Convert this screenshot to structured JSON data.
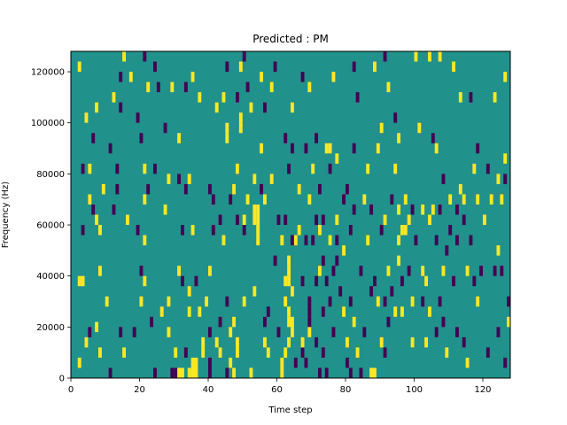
{
  "chart_data": {
    "type": "heatmap",
    "title": "Predicted : PM",
    "xlabel": "Time step",
    "ylabel": "Frequency (Hz)",
    "xlim": [
      0,
      128
    ],
    "ylim": [
      0,
      128000
    ],
    "xticks": [
      0,
      20,
      40,
      60,
      80,
      100,
      120
    ],
    "yticks": [
      0,
      20000,
      40000,
      60000,
      80000,
      100000,
      120000
    ],
    "background_value": 0,
    "colors": {
      "-1": "#440154",
      "0": "#21918c",
      "1": "#fde725"
    },
    "cell_height_hz": 4000,
    "cells": [
      [
        2,
        38000,
        1
      ],
      [
        3,
        38000,
        1
      ],
      [
        2,
        122000,
        1
      ],
      [
        3,
        82000,
        -1
      ],
      [
        3,
        58000,
        -1
      ],
      [
        2,
        6000,
        1
      ],
      [
        4,
        102000,
        1
      ],
      [
        4,
        14000,
        1
      ],
      [
        5,
        18000,
        -1
      ],
      [
        5,
        70000,
        1
      ],
      [
        5,
        82000,
        1
      ],
      [
        6,
        66000,
        -1
      ],
      [
        6,
        94000,
        -1
      ],
      [
        7,
        20000,
        1
      ],
      [
        7,
        106000,
        1
      ],
      [
        7,
        62000,
        1
      ],
      [
        8,
        58000,
        1
      ],
      [
        8,
        42000,
        1
      ],
      [
        8,
        10000,
        1
      ],
      [
        9,
        74000,
        1
      ],
      [
        10,
        30000,
        1
      ],
      [
        11,
        90000,
        -1
      ],
      [
        11,
        2000,
        -1
      ],
      [
        12,
        110000,
        1
      ],
      [
        12,
        66000,
        -1
      ],
      [
        13,
        82000,
        -1
      ],
      [
        13,
        74000,
        -1
      ],
      [
        14,
        106000,
        -1
      ],
      [
        14,
        18000,
        -1
      ],
      [
        14,
        118000,
        -1
      ],
      [
        15,
        126000,
        1
      ],
      [
        15,
        10000,
        1
      ],
      [
        16,
        62000,
        1
      ],
      [
        17,
        118000,
        1
      ],
      [
        18,
        18000,
        -1
      ],
      [
        19,
        102000,
        -1
      ],
      [
        19,
        58000,
        -1
      ],
      [
        20,
        94000,
        -1
      ],
      [
        20,
        42000,
        -1
      ],
      [
        20,
        30000,
        1
      ],
      [
        21,
        82000,
        1
      ],
      [
        21,
        70000,
        1
      ],
      [
        21,
        38000,
        1
      ],
      [
        21,
        54000,
        1
      ],
      [
        21,
        126000,
        -1
      ],
      [
        22,
        114000,
        1
      ],
      [
        22,
        74000,
        -1
      ],
      [
        23,
        22000,
        -1
      ],
      [
        24,
        82000,
        -1
      ],
      [
        24,
        122000,
        -1
      ],
      [
        24,
        2000,
        -1
      ],
      [
        25,
        114000,
        -1
      ],
      [
        26,
        26000,
        1
      ],
      [
        27,
        98000,
        -1
      ],
      [
        27,
        66000,
        1
      ],
      [
        28,
        30000,
        1
      ],
      [
        28,
        18000,
        1
      ],
      [
        28,
        78000,
        1
      ],
      [
        29,
        114000,
        1
      ],
      [
        29,
        2000,
        -1
      ],
      [
        30,
        10000,
        1
      ],
      [
        30,
        2000,
        -1
      ],
      [
        31,
        2000,
        1
      ],
      [
        31,
        94000,
        1
      ],
      [
        31,
        42000,
        1
      ],
      [
        31,
        78000,
        -1
      ],
      [
        32,
        2000,
        1
      ],
      [
        32,
        58000,
        -1
      ],
      [
        32,
        38000,
        -1
      ],
      [
        33,
        74000,
        -1
      ],
      [
        33,
        10000,
        -1
      ],
      [
        33,
        114000,
        -1
      ],
      [
        34,
        78000,
        1
      ],
      [
        34,
        2000,
        1
      ],
      [
        34,
        34000,
        1
      ],
      [
        34,
        26000,
        1
      ],
      [
        35,
        118000,
        1
      ],
      [
        35,
        6000,
        1
      ],
      [
        35,
        2000,
        1
      ],
      [
        35,
        58000,
        1
      ],
      [
        36,
        6000,
        1
      ],
      [
        36,
        2000,
        1
      ],
      [
        36,
        38000,
        -1
      ],
      [
        37,
        110000,
        1
      ],
      [
        37,
        26000,
        1
      ],
      [
        38,
        10000,
        1
      ],
      [
        38,
        14000,
        1
      ],
      [
        39,
        30000,
        1
      ],
      [
        40,
        42000,
        1
      ],
      [
        40,
        74000,
        -1
      ],
      [
        40,
        18000,
        -1
      ],
      [
        40,
        2000,
        -1
      ],
      [
        40,
        6000,
        -1
      ],
      [
        41,
        70000,
        -1
      ],
      [
        41,
        58000,
        -1
      ],
      [
        42,
        106000,
        1
      ],
      [
        42,
        14000,
        1
      ],
      [
        43,
        22000,
        -1
      ],
      [
        43,
        62000,
        -1
      ],
      [
        43,
        10000,
        1
      ],
      [
        44,
        54000,
        1
      ],
      [
        44,
        110000,
        1
      ],
      [
        45,
        122000,
        -1
      ],
      [
        45,
        98000,
        1
      ],
      [
        45,
        94000,
        1
      ],
      [
        45,
        2000,
        -1
      ],
      [
        45,
        30000,
        -1
      ],
      [
        46,
        70000,
        -1
      ],
      [
        46,
        6000,
        1
      ],
      [
        46,
        18000,
        1
      ],
      [
        47,
        22000,
        1
      ],
      [
        47,
        74000,
        1
      ],
      [
        47,
        2000,
        1
      ],
      [
        48,
        82000,
        1
      ],
      [
        48,
        62000,
        -1
      ],
      [
        48,
        110000,
        -1
      ],
      [
        48,
        14000,
        1
      ],
      [
        48,
        10000,
        1
      ],
      [
        49,
        102000,
        1
      ],
      [
        49,
        98000,
        1
      ],
      [
        49,
        122000,
        1
      ],
      [
        50,
        126000,
        -1
      ],
      [
        50,
        62000,
        1
      ],
      [
        50,
        58000,
        -1
      ],
      [
        50,
        30000,
        1
      ],
      [
        51,
        70000,
        1
      ],
      [
        51,
        114000,
        -1
      ],
      [
        52,
        106000,
        1
      ],
      [
        52,
        2000,
        1
      ],
      [
        53,
        62000,
        1
      ],
      [
        53,
        66000,
        1
      ],
      [
        53,
        78000,
        1
      ],
      [
        53,
        34000,
        1
      ],
      [
        54,
        62000,
        1
      ],
      [
        54,
        66000,
        1
      ],
      [
        54,
        58000,
        1
      ],
      [
        54,
        54000,
        1
      ],
      [
        55,
        90000,
        1
      ],
      [
        55,
        74000,
        -1
      ],
      [
        55,
        118000,
        1
      ],
      [
        56,
        70000,
        1
      ],
      [
        56,
        106000,
        -1
      ],
      [
        56,
        22000,
        -1
      ],
      [
        56,
        14000,
        1
      ],
      [
        57,
        26000,
        -1
      ],
      [
        57,
        10000,
        1
      ],
      [
        58,
        114000,
        1
      ],
      [
        58,
        78000,
        1
      ],
      [
        59,
        122000,
        -1
      ],
      [
        59,
        46000,
        -1
      ],
      [
        60,
        62000,
        -1
      ],
      [
        60,
        18000,
        -1
      ],
      [
        61,
        54000,
        1
      ],
      [
        61,
        6000,
        1
      ],
      [
        61,
        2000,
        1
      ],
      [
        62,
        94000,
        -1
      ],
      [
        62,
        10000,
        1
      ],
      [
        62,
        38000,
        1
      ],
      [
        62,
        30000,
        1
      ],
      [
        62,
        62000,
        -1
      ],
      [
        63,
        46000,
        1
      ],
      [
        63,
        42000,
        1
      ],
      [
        63,
        38000,
        1
      ],
      [
        63,
        26000,
        1
      ],
      [
        63,
        22000,
        1
      ],
      [
        63,
        14000,
        1
      ],
      [
        63,
        82000,
        -1
      ],
      [
        64,
        106000,
        1
      ],
      [
        64,
        54000,
        -1
      ],
      [
        64,
        34000,
        1
      ],
      [
        64,
        22000,
        1
      ],
      [
        64,
        18000,
        1
      ],
      [
        64,
        90000,
        -1
      ],
      [
        65,
        54000,
        1
      ],
      [
        65,
        6000,
        -1
      ],
      [
        66,
        74000,
        1
      ],
      [
        66,
        58000,
        1
      ],
      [
        67,
        118000,
        -1
      ],
      [
        67,
        38000,
        -1
      ],
      [
        67,
        10000,
        -1
      ],
      [
        67,
        14000,
        1
      ],
      [
        68,
        90000,
        -1
      ],
      [
        68,
        54000,
        -1
      ],
      [
        68,
        6000,
        -1
      ],
      [
        69,
        114000,
        1
      ],
      [
        69,
        70000,
        1
      ],
      [
        69,
        22000,
        -1
      ],
      [
        69,
        26000,
        -1
      ],
      [
        69,
        30000,
        -1
      ],
      [
        69,
        18000,
        1
      ],
      [
        70,
        54000,
        -1
      ],
      [
        70,
        82000,
        1
      ],
      [
        71,
        62000,
        -1
      ],
      [
        71,
        14000,
        -1
      ],
      [
        71,
        94000,
        -1
      ],
      [
        71,
        38000,
        -1
      ],
      [
        72,
        58000,
        1
      ],
      [
        72,
        42000,
        1
      ],
      [
        72,
        74000,
        -1
      ],
      [
        72,
        2000,
        -1
      ],
      [
        73,
        62000,
        -1
      ],
      [
        73,
        46000,
        -1
      ],
      [
        73,
        26000,
        -1
      ],
      [
        73,
        10000,
        -1
      ],
      [
        74,
        38000,
        -1
      ],
      [
        74,
        2000,
        -1
      ],
      [
        74,
        90000,
        1
      ],
      [
        75,
        90000,
        1
      ],
      [
        75,
        54000,
        1
      ],
      [
        75,
        30000,
        -1
      ],
      [
        75,
        82000,
        -1
      ],
      [
        76,
        42000,
        -1
      ],
      [
        76,
        118000,
        1
      ],
      [
        76,
        18000,
        -1
      ],
      [
        77,
        86000,
        1
      ],
      [
        77,
        62000,
        1
      ],
      [
        77,
        46000,
        -1
      ],
      [
        77,
        54000,
        -1
      ],
      [
        78,
        34000,
        -1
      ],
      [
        79,
        70000,
        -1
      ],
      [
        79,
        26000,
        1
      ],
      [
        79,
        50000,
        1
      ],
      [
        80,
        74000,
        -1
      ],
      [
        80,
        6000,
        -1
      ],
      [
        80,
        14000,
        1
      ],
      [
        81,
        58000,
        -1
      ],
      [
        81,
        30000,
        -1
      ],
      [
        81,
        2000,
        -1
      ],
      [
        82,
        90000,
        -1
      ],
      [
        82,
        66000,
        -1
      ],
      [
        82,
        22000,
        1
      ],
      [
        82,
        122000,
        -1
      ],
      [
        83,
        110000,
        -1
      ],
      [
        83,
        10000,
        1
      ],
      [
        84,
        42000,
        -1
      ],
      [
        84,
        2000,
        -1
      ],
      [
        85,
        70000,
        1
      ],
      [
        85,
        18000,
        -1
      ],
      [
        86,
        82000,
        1
      ],
      [
        86,
        54000,
        1
      ],
      [
        87,
        66000,
        -1
      ],
      [
        87,
        34000,
        -1
      ],
      [
        87,
        2000,
        1
      ],
      [
        88,
        122000,
        1
      ],
      [
        88,
        2000,
        1
      ],
      [
        88,
        38000,
        -1
      ],
      [
        89,
        90000,
        1
      ],
      [
        89,
        30000,
        1
      ],
      [
        90,
        98000,
        1
      ],
      [
        90,
        58000,
        -1
      ],
      [
        90,
        14000,
        1
      ],
      [
        91,
        126000,
        -1
      ],
      [
        91,
        62000,
        1
      ],
      [
        91,
        10000,
        -1
      ],
      [
        91,
        30000,
        -1
      ],
      [
        92,
        114000,
        1
      ],
      [
        92,
        22000,
        -1
      ],
      [
        92,
        42000,
        1
      ],
      [
        93,
        70000,
        -1
      ],
      [
        93,
        34000,
        -1
      ],
      [
        94,
        102000,
        -1
      ],
      [
        94,
        82000,
        1
      ],
      [
        94,
        26000,
        1
      ],
      [
        95,
        66000,
        1
      ],
      [
        95,
        54000,
        1
      ],
      [
        95,
        46000,
        1
      ],
      [
        95,
        94000,
        1
      ],
      [
        96,
        58000,
        1
      ],
      [
        96,
        26000,
        1
      ],
      [
        96,
        38000,
        -1
      ],
      [
        97,
        58000,
        1
      ],
      [
        97,
        70000,
        1
      ],
      [
        98,
        42000,
        -1
      ],
      [
        98,
        62000,
        1
      ],
      [
        99,
        66000,
        -1
      ],
      [
        99,
        30000,
        1
      ],
      [
        99,
        14000,
        1
      ],
      [
        100,
        54000,
        -1
      ],
      [
        100,
        126000,
        1
      ],
      [
        101,
        98000,
        1
      ],
      [
        102,
        42000,
        1
      ],
      [
        102,
        30000,
        -1
      ],
      [
        102,
        66000,
        1
      ],
      [
        103,
        14000,
        1
      ],
      [
        103,
        38000,
        1
      ],
      [
        104,
        62000,
        1
      ],
      [
        104,
        126000,
        1
      ],
      [
        104,
        26000,
        1
      ],
      [
        105,
        94000,
        -1
      ],
      [
        105,
        66000,
        1
      ],
      [
        106,
        90000,
        1
      ],
      [
        106,
        54000,
        -1
      ],
      [
        106,
        18000,
        -1
      ],
      [
        107,
        126000,
        1
      ],
      [
        107,
        66000,
        -1
      ],
      [
        107,
        30000,
        -1
      ],
      [
        108,
        78000,
        -1
      ],
      [
        108,
        42000,
        1
      ],
      [
        108,
        22000,
        -1
      ],
      [
        109,
        50000,
        -1
      ],
      [
        109,
        10000,
        1
      ],
      [
        110,
        70000,
        1
      ],
      [
        110,
        58000,
        -1
      ],
      [
        111,
        122000,
        1
      ],
      [
        111,
        38000,
        -1
      ],
      [
        112,
        66000,
        -1
      ],
      [
        112,
        54000,
        -1
      ],
      [
        112,
        18000,
        -1
      ],
      [
        113,
        110000,
        1
      ],
      [
        113,
        74000,
        1
      ],
      [
        114,
        70000,
        1
      ],
      [
        114,
        14000,
        -1
      ],
      [
        114,
        62000,
        -1
      ],
      [
        115,
        42000,
        1
      ],
      [
        115,
        6000,
        1
      ],
      [
        116,
        110000,
        -1
      ],
      [
        116,
        54000,
        -1
      ],
      [
        117,
        82000,
        1
      ],
      [
        117,
        38000,
        -1
      ],
      [
        118,
        90000,
        -1
      ],
      [
        118,
        70000,
        1
      ],
      [
        118,
        30000,
        1
      ],
      [
        119,
        42000,
        -1
      ],
      [
        120,
        62000,
        1
      ],
      [
        121,
        82000,
        -1
      ],
      [
        121,
        10000,
        -1
      ],
      [
        122,
        70000,
        1
      ],
      [
        123,
        110000,
        1
      ],
      [
        123,
        42000,
        -1
      ],
      [
        124,
        78000,
        1
      ],
      [
        124,
        50000,
        1
      ],
      [
        124,
        18000,
        -1
      ],
      [
        125,
        70000,
        1
      ],
      [
        125,
        42000,
        -1
      ],
      [
        126,
        86000,
        1
      ],
      [
        126,
        6000,
        -1
      ],
      [
        126,
        78000,
        -1
      ],
      [
        126,
        118000,
        1
      ],
      [
        127,
        30000,
        -1
      ],
      [
        127,
        22000,
        1
      ]
    ]
  }
}
